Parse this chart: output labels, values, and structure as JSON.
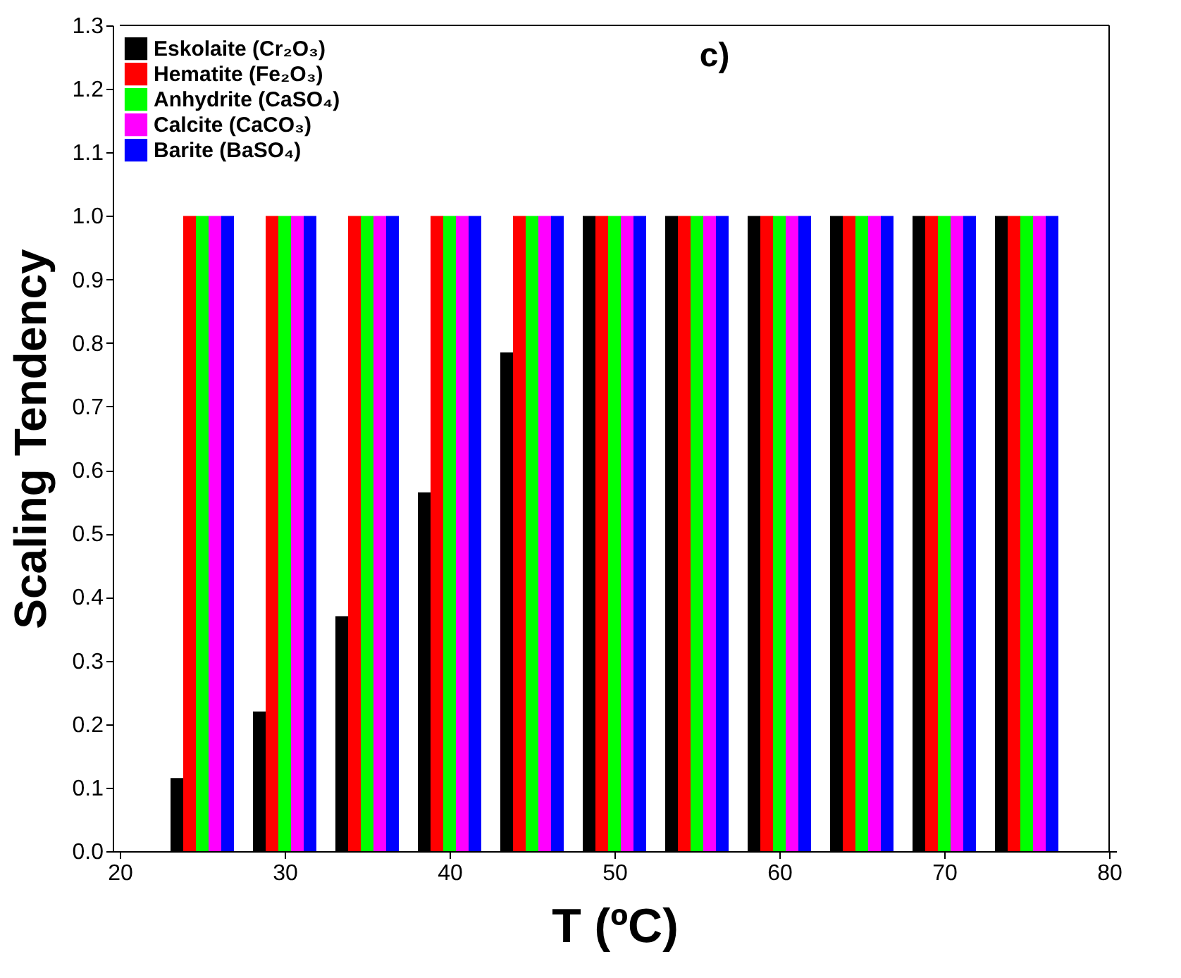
{
  "chart_data": {
    "type": "bar",
    "xlabel": "T (ºC)",
    "ylabel": "Scaling Tendency",
    "annotations": [
      "c)"
    ],
    "x": [
      25,
      30,
      35,
      40,
      45,
      50,
      55,
      60,
      65,
      70,
      75
    ],
    "series": [
      {
        "name": "Eskolaite (Cr₂O₃)",
        "color": "#000000",
        "values": [
          0.115,
          0.22,
          0.37,
          0.565,
          0.785,
          1.0,
          1.0,
          1.0,
          1.0,
          1.0,
          1.0
        ]
      },
      {
        "name": "Hematite (Fe₂O₃)",
        "color": "#ff0000",
        "values": [
          1.0,
          1.0,
          1.0,
          1.0,
          1.0,
          1.0,
          1.0,
          1.0,
          1.0,
          1.0,
          1.0
        ]
      },
      {
        "name": "Anhydrite (CaSO₄)",
        "color": "#00ff00",
        "values": [
          1.0,
          1.0,
          1.0,
          1.0,
          1.0,
          1.0,
          1.0,
          1.0,
          1.0,
          1.0,
          1.0
        ]
      },
      {
        "name": "Calcite (CaCO₃)",
        "color": "#ff00ff",
        "values": [
          1.0,
          1.0,
          1.0,
          1.0,
          1.0,
          1.0,
          1.0,
          1.0,
          1.0,
          1.0,
          1.0
        ]
      },
      {
        "name": "Barite (BaSO₄)",
        "color": "#0000ff",
        "values": [
          1.0,
          1.0,
          1.0,
          1.0,
          1.0,
          1.0,
          1.0,
          1.0,
          1.0,
          1.0,
          1.0
        ]
      }
    ],
    "xlim": [
      20,
      80
    ],
    "xticks": [
      20,
      30,
      40,
      50,
      60,
      70,
      80
    ],
    "ylim": [
      0,
      1.3
    ],
    "yticks": [
      {
        "value": 0,
        "label": "0.0"
      },
      0.1,
      0.2,
      0.3,
      0.4,
      0.5,
      0.6,
      0.7,
      0.8,
      0.9,
      {
        "value": 1.0,
        "label": "1.0"
      },
      1.1,
      1.2,
      1.3
    ],
    "grid": false,
    "legend": "top left"
  }
}
